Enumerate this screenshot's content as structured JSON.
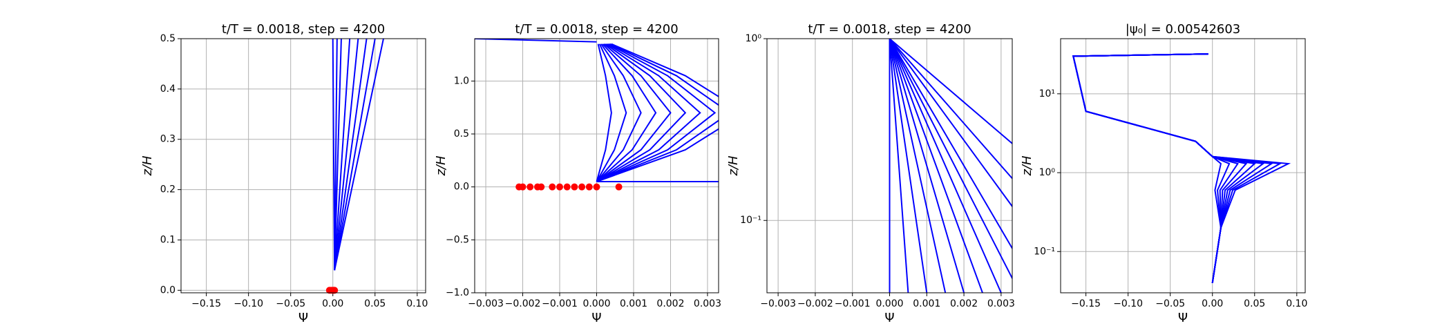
{
  "chart_data": [
    {
      "type": "line",
      "title": "t/T = 0.0018, step = 4200",
      "x_label": "Ψ",
      "y_label": "z/H",
      "grid": true,
      "log_y": false,
      "xlim": [
        -0.18,
        0.11
      ],
      "ylim": [
        -0.005,
        0.5
      ],
      "xticks": [
        {
          "value": -0.15,
          "label": "−0.15"
        },
        {
          "value": -0.1,
          "label": "−0.10"
        },
        {
          "value": -0.05,
          "label": "−0.05"
        },
        {
          "value": 0,
          "label": "0.00"
        },
        {
          "value": 0.05,
          "label": "0.05"
        },
        {
          "value": 0.1,
          "label": "0.10"
        }
      ],
      "yticks": [
        {
          "value": 0,
          "label": "0.0"
        },
        0.1,
        0.2,
        0.3,
        0.4,
        0.5
      ],
      "series": [
        {
          "color": "#0000ff",
          "x": [
            0.002,
            0.0
          ],
          "values": [
            0.04,
            0.5
          ]
        },
        {
          "color": "#0000ff",
          "x": [
            0.002,
            0.005
          ],
          "values": [
            0.04,
            0.5
          ]
        },
        {
          "color": "#0000ff",
          "x": [
            0.002,
            0.01
          ],
          "values": [
            0.04,
            0.5
          ]
        },
        {
          "color": "#0000ff",
          "x": [
            0.002,
            0.02
          ],
          "values": [
            0.04,
            0.5
          ]
        },
        {
          "color": "#0000ff",
          "x": [
            0.002,
            0.03
          ],
          "values": [
            0.04,
            0.5
          ]
        },
        {
          "color": "#0000ff",
          "x": [
            0.002,
            0.04
          ],
          "values": [
            0.04,
            0.5
          ]
        },
        {
          "color": "#0000ff",
          "x": [
            0.002,
            0.05
          ],
          "values": [
            0.04,
            0.5
          ]
        },
        {
          "color": "#0000ff",
          "x": [
            0.002,
            0.06
          ],
          "values": [
            0.04,
            0.5
          ]
        },
        {
          "color": "#ff0000",
          "marker": "dot",
          "x": [
            -0.004,
            -0.002,
            0,
            0.001,
            0.002
          ],
          "values": [
            0,
            0,
            0,
            0,
            0
          ]
        }
      ]
    },
    {
      "type": "line",
      "title": "t/T = 0.0018, step = 4200",
      "x_label": "Ψ",
      "y_label": "z/H",
      "grid": true,
      "log_y": false,
      "xlim": [
        -0.0033,
        0.0033
      ],
      "ylim": [
        -1,
        1.4
      ],
      "xticks": [
        {
          "value": -0.003,
          "label": "−0.003"
        },
        {
          "value": -0.002,
          "label": "−0.002"
        },
        {
          "value": -0.001,
          "label": "−0.001"
        },
        {
          "value": 0,
          "label": "0.000"
        },
        {
          "value": 0.001,
          "label": "0.001"
        },
        {
          "value": 0.002,
          "label": "0.002"
        },
        {
          "value": 0.003,
          "label": "0.003"
        }
      ],
      "yticks": [
        {
          "value": -1,
          "label": "−1.0"
        },
        {
          "value": -0.5,
          "label": "−0.5"
        },
        {
          "value": 0,
          "label": "0.0"
        },
        0.5,
        {
          "value": 1,
          "label": "1.0"
        }
      ],
      "series": [
        {
          "color": "#0000ff",
          "x": [
            -0.0033,
            0
          ],
          "values": [
            1.4,
            1.37
          ]
        },
        {
          "color": "#0000ff",
          "x": [
            0,
            0.0033
          ],
          "values": [
            0.05,
            0.05
          ]
        },
        {
          "color": "#0000ff",
          "x": [
            0,
            0.00024,
            0.0004,
            0.00024,
            4e-05
          ],
          "values": [
            0.05,
            0.35,
            0.7,
            1.05,
            1.35
          ]
        },
        {
          "color": "#0000ff",
          "x": [
            0,
            0.00048,
            0.0008,
            0.00048,
            8e-05
          ],
          "values": [
            0.05,
            0.35,
            0.7,
            1.05,
            1.35
          ]
        },
        {
          "color": "#0000ff",
          "x": [
            0,
            0.00072,
            0.0012,
            0.00072,
            0.00012
          ],
          "values": [
            0.05,
            0.35,
            0.7,
            1.05,
            1.35
          ]
        },
        {
          "color": "#0000ff",
          "x": [
            0,
            0.00096,
            0.0016,
            0.00096,
            0.00016
          ],
          "values": [
            0.05,
            0.35,
            0.7,
            1.05,
            1.35
          ]
        },
        {
          "color": "#0000ff",
          "x": [
            0,
            0.0012,
            0.002,
            0.0012,
            0.0002
          ],
          "values": [
            0.05,
            0.35,
            0.7,
            1.05,
            1.35
          ]
        },
        {
          "color": "#0000ff",
          "x": [
            0,
            0.00144,
            0.0024,
            0.00144,
            0.00024
          ],
          "values": [
            0.05,
            0.35,
            0.7,
            1.05,
            1.35
          ]
        },
        {
          "color": "#0000ff",
          "x": [
            0,
            0.00168,
            0.0028,
            0.00168,
            0.00028
          ],
          "values": [
            0.05,
            0.35,
            0.7,
            1.05,
            1.35
          ]
        },
        {
          "color": "#0000ff",
          "x": [
            0,
            0.00192,
            0.0032,
            0.00192,
            0.00032
          ],
          "values": [
            0.05,
            0.35,
            0.7,
            1.05,
            1.35
          ]
        },
        {
          "color": "#0000ff",
          "x": [
            0,
            0.00216,
            0.0036,
            0.00216,
            0.00036
          ],
          "values": [
            0.05,
            0.35,
            0.7,
            1.05,
            1.35
          ]
        },
        {
          "color": "#0000ff",
          "x": [
            0,
            0.0024,
            0.004,
            0.0024,
            0.0004
          ],
          "values": [
            0.05,
            0.35,
            0.7,
            1.05,
            1.35
          ]
        },
        {
          "color": "#ff0000",
          "marker": "dot",
          "x": [
            -0.0021,
            -0.002,
            -0.0018,
            -0.0016,
            -0.0015,
            -0.0012,
            -0.001,
            -0.0008,
            -0.0006,
            -0.0004,
            -0.0002,
            0,
            0.0006
          ],
          "values": [
            0,
            0,
            0,
            0,
            0,
            0,
            0,
            0,
            0,
            0,
            0,
            0,
            0
          ]
        }
      ]
    },
    {
      "type": "line",
      "title": "t/T = 0.0018, step = 4200",
      "x_label": "Ψ",
      "y_label": "z/H",
      "grid": true,
      "log_y": true,
      "xlim": [
        -0.0033,
        0.0033
      ],
      "ylim": [
        0.04,
        1
      ],
      "xticks": [
        {
          "value": -0.003,
          "label": "−0.003"
        },
        {
          "value": -0.002,
          "label": "−0.002"
        },
        {
          "value": -0.001,
          "label": "−0.001"
        },
        {
          "value": 0,
          "label": "0.000"
        },
        {
          "value": 0.001,
          "label": "0.001"
        },
        {
          "value": 0.002,
          "label": "0.002"
        },
        {
          "value": 0.003,
          "label": "0.003"
        }
      ],
      "yticks": [
        {
          "value": 0.1,
          "label": "10⁻¹"
        },
        {
          "value": 1,
          "label": "10⁰"
        }
      ],
      "series": [
        {
          "color": "#0000ff",
          "x": [
            0,
            0
          ],
          "values": [
            1,
            0.04
          ]
        },
        {
          "color": "#0000ff",
          "x": [
            0,
            0.0005
          ],
          "values": [
            1,
            0.04
          ]
        },
        {
          "color": "#0000ff",
          "x": [
            0,
            0.001
          ],
          "values": [
            1,
            0.04
          ]
        },
        {
          "color": "#0000ff",
          "x": [
            0,
            0.0015
          ],
          "values": [
            1,
            0.04
          ]
        },
        {
          "color": "#0000ff",
          "x": [
            0,
            0.002
          ],
          "values": [
            1,
            0.04
          ]
        },
        {
          "color": "#0000ff",
          "x": [
            0,
            0.0025
          ],
          "values": [
            1,
            0.04
          ]
        },
        {
          "color": "#0000ff",
          "x": [
            0,
            0.003
          ],
          "values": [
            1,
            0.04
          ]
        },
        {
          "color": "#0000ff",
          "x": [
            0,
            0.0035
          ],
          "values": [
            1,
            0.04
          ]
        },
        {
          "color": "#0000ff",
          "x": [
            0,
            0.004
          ],
          "values": [
            1,
            0.04
          ]
        },
        {
          "color": "#0000ff",
          "x": [
            0,
            0.005
          ],
          "values": [
            1,
            0.04
          ]
        },
        {
          "color": "#0000ff",
          "x": [
            0,
            0.006
          ],
          "values": [
            1,
            0.04
          ]
        },
        {
          "color": "#0000ff",
          "x": [
            0,
            0.008
          ],
          "values": [
            1,
            0.04
          ]
        }
      ]
    },
    {
      "type": "line",
      "title": "|ψ₀| = 0.00542603",
      "x_label": "Ψ",
      "y_label": "z/H",
      "grid": true,
      "log_y": true,
      "xlim": [
        -0.18,
        0.11
      ],
      "ylim": [
        0.03,
        50
      ],
      "xticks": [
        {
          "value": -0.15,
          "label": "−0.15"
        },
        {
          "value": -0.1,
          "label": "−0.10"
        },
        {
          "value": -0.05,
          "label": "−0.05"
        },
        {
          "value": 0,
          "label": "0.00"
        },
        {
          "value": 0.05,
          "label": "0.05"
        },
        {
          "value": 0.1,
          "label": "0.10"
        }
      ],
      "yticks": [
        {
          "value": 0.1,
          "label": "10⁻¹"
        },
        {
          "value": 1,
          "label": "10⁰"
        },
        {
          "value": 10,
          "label": "10¹"
        }
      ],
      "series": [
        {
          "color": "#0000ff",
          "x": [
            -0.005,
            -0.165,
            -0.15,
            -0.02,
            0,
            0.01,
            0.003,
            0.01,
            0
          ],
          "values": [
            32,
            30,
            6,
            2.5,
            1.6,
            1.3,
            0.6,
            0.2,
            0.04
          ]
        },
        {
          "color": "#0000ff",
          "x": [
            -0.005,
            -0.165,
            -0.15,
            -0.02,
            0,
            0.02,
            0.006,
            0.01,
            0
          ],
          "values": [
            32,
            30,
            6,
            2.5,
            1.6,
            1.3,
            0.6,
            0.2,
            0.04
          ]
        },
        {
          "color": "#0000ff",
          "x": [
            -0.005,
            -0.165,
            -0.15,
            -0.02,
            0,
            0.03,
            0.009,
            0.01,
            0
          ],
          "values": [
            32,
            30,
            6,
            2.5,
            1.6,
            1.3,
            0.6,
            0.2,
            0.04
          ]
        },
        {
          "color": "#0000ff",
          "x": [
            -0.005,
            -0.165,
            -0.15,
            -0.02,
            0,
            0.04,
            0.012,
            0.01,
            0
          ],
          "values": [
            32,
            30,
            6,
            2.5,
            1.6,
            1.3,
            0.6,
            0.2,
            0.04
          ]
        },
        {
          "color": "#0000ff",
          "x": [
            -0.005,
            -0.165,
            -0.15,
            -0.02,
            0,
            0.05,
            0.015,
            0.01,
            0
          ],
          "values": [
            32,
            30,
            6,
            2.5,
            1.6,
            1.3,
            0.6,
            0.2,
            0.04
          ]
        },
        {
          "color": "#0000ff",
          "x": [
            -0.005,
            -0.165,
            -0.15,
            -0.02,
            0,
            0.06,
            0.018,
            0.01,
            0
          ],
          "values": [
            32,
            30,
            6,
            2.5,
            1.6,
            1.3,
            0.6,
            0.2,
            0.04
          ]
        },
        {
          "color": "#0000ff",
          "x": [
            -0.005,
            -0.165,
            -0.15,
            -0.02,
            0,
            0.07,
            0.021,
            0.01,
            0
          ],
          "values": [
            32,
            30,
            6,
            2.5,
            1.6,
            1.3,
            0.6,
            0.2,
            0.04
          ]
        },
        {
          "color": "#0000ff",
          "x": [
            -0.005,
            -0.165,
            -0.15,
            -0.02,
            0,
            0.08,
            0.024,
            0.01,
            0
          ],
          "values": [
            32,
            30,
            6,
            2.5,
            1.6,
            1.3,
            0.6,
            0.2,
            0.04
          ]
        },
        {
          "color": "#0000ff",
          "x": [
            -0.005,
            -0.165,
            -0.15,
            -0.02,
            0,
            0.09,
            0.027,
            0.01,
            0
          ],
          "values": [
            32,
            30,
            6,
            2.5,
            1.6,
            1.3,
            0.6,
            0.2,
            0.04
          ]
        }
      ]
    }
  ]
}
